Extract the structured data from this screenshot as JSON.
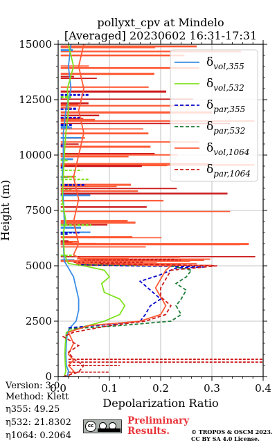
{
  "chart_data": {
    "type": "line",
    "title": [
      "pollyxt_cpv at Mindelo",
      "[Averaged] 20230602 16:31-17:31"
    ],
    "xlabel": "Depolarization Ratio",
    "ylabel": "Height (m)",
    "xlim": [
      0.0,
      0.4
    ],
    "ylim": [
      0,
      15000
    ],
    "x_ticks": [
      0.0,
      0.1,
      0.2,
      0.3,
      0.4
    ],
    "x_tick_labels": [
      "0.0",
      "0.1",
      "0.2",
      "0.3",
      "0.4"
    ],
    "y_ticks": [
      0,
      2500,
      5000,
      7500,
      10000,
      12500,
      15000
    ],
    "y_tick_labels": [
      "0",
      "2500",
      "5000",
      "7500",
      "10000",
      "12500",
      "15000"
    ],
    "grid": true,
    "legend_position": "top-right",
    "series": [
      {
        "name": "δ_vol,355",
        "color": "#3a8ee6",
        "style": "solid",
        "points": [
          [
            0.018,
            0
          ],
          [
            0.02,
            250
          ],
          [
            0.016,
            500
          ],
          [
            0.015,
            1000
          ],
          [
            0.016,
            1500
          ],
          [
            0.018,
            2000
          ],
          [
            0.025,
            2250
          ],
          [
            0.035,
            2500
          ],
          [
            0.04,
            3000
          ],
          [
            0.04,
            3500
          ],
          [
            0.035,
            4000
          ],
          [
            0.03,
            4500
          ],
          [
            0.02,
            4900
          ],
          [
            0.012,
            5200
          ],
          [
            0.01,
            6000
          ],
          [
            0.012,
            7000
          ],
          [
            0.01,
            8000
          ],
          [
            0.008,
            9000
          ],
          [
            0.01,
            10000
          ],
          [
            0.01,
            11000
          ],
          [
            0.015,
            12000
          ],
          [
            0.02,
            12500
          ],
          [
            0.025,
            13000
          ],
          [
            0.02,
            14000
          ],
          [
            0.025,
            15000
          ]
        ]
      },
      {
        "name": "δ_vol,532",
        "color": "#7fe21e",
        "style": "solid",
        "points": [
          [
            0.012,
            0
          ],
          [
            0.015,
            250
          ],
          [
            0.014,
            500
          ],
          [
            0.013,
            1000
          ],
          [
            0.014,
            1500
          ],
          [
            0.016,
            2000
          ],
          [
            0.05,
            2250
          ],
          [
            0.09,
            2500
          ],
          [
            0.12,
            2800
          ],
          [
            0.13,
            3200
          ],
          [
            0.12,
            3500
          ],
          [
            0.09,
            3800
          ],
          [
            0.085,
            4200
          ],
          [
            0.1,
            4500
          ],
          [
            0.09,
            4800
          ],
          [
            0.05,
            5000
          ],
          [
            0.02,
            5100
          ],
          [
            0.012,
            5500
          ],
          [
            0.01,
            6500
          ],
          [
            0.015,
            7000
          ],
          [
            0.008,
            8000
          ],
          [
            0.01,
            9000
          ],
          [
            0.012,
            10000
          ],
          [
            0.015,
            11000
          ],
          [
            0.02,
            12000
          ],
          [
            0.018,
            13000
          ],
          [
            0.03,
            14000
          ],
          [
            0.02,
            15000
          ]
        ]
      },
      {
        "name": "δ_par,355",
        "color": "#0000cc",
        "style": "dashed",
        "points": [
          [
            0.02,
            2200
          ],
          [
            0.1,
            2350
          ],
          [
            0.16,
            2500
          ],
          [
            0.17,
            2800
          ],
          [
            0.18,
            3200
          ],
          [
            0.2,
            3500
          ],
          [
            0.18,
            3900
          ],
          [
            0.16,
            4300
          ],
          [
            0.2,
            4600
          ],
          [
            0.23,
            4900
          ],
          [
            0.29,
            4950
          ],
          [
            0.14,
            5000
          ],
          [
            0.04,
            5050
          ]
        ]
      },
      {
        "name": "δ_par,532",
        "color": "#1b7d36",
        "style": "dashed",
        "points": [
          [
            0.02,
            2150
          ],
          [
            0.12,
            2300
          ],
          [
            0.22,
            2500
          ],
          [
            0.24,
            2800
          ],
          [
            0.23,
            3200
          ],
          [
            0.24,
            3500
          ],
          [
            0.25,
            3900
          ],
          [
            0.23,
            4200
          ],
          [
            0.25,
            4500
          ],
          [
            0.26,
            4800
          ],
          [
            0.22,
            5000
          ],
          [
            0.05,
            5050
          ]
        ]
      },
      {
        "name": "δ_vol,1064",
        "color": "#ff5a36",
        "style": "solid",
        "points": [
          [
            0.02,
            0
          ],
          [
            0.03,
            250
          ],
          [
            0.02,
            500
          ],
          [
            0.03,
            750
          ],
          [
            0.02,
            1000
          ],
          [
            0.03,
            1500
          ],
          [
            0.02,
            2000
          ],
          [
            0.06,
            2300
          ],
          [
            0.16,
            2500
          ],
          [
            0.2,
            2800
          ],
          [
            0.21,
            3200
          ],
          [
            0.2,
            3600
          ],
          [
            0.19,
            4000
          ],
          [
            0.2,
            4400
          ],
          [
            0.21,
            4800
          ],
          [
            0.22,
            5000
          ],
          [
            0.06,
            5100
          ],
          [
            0.03,
            5500
          ],
          [
            0.04,
            6000
          ],
          [
            0.03,
            7000
          ],
          [
            0.04,
            8000
          ],
          [
            0.03,
            9000
          ],
          [
            0.04,
            10000
          ],
          [
            0.05,
            11000
          ],
          [
            0.04,
            12000
          ],
          [
            0.05,
            13000
          ],
          [
            0.04,
            14000
          ],
          [
            0.05,
            15000
          ]
        ]
      },
      {
        "name": "δ_par,1064",
        "color": "#cc1a1a",
        "style": "dashed",
        "points": [
          [
            0.01,
            0
          ],
          [
            0.04,
            200
          ],
          [
            0.05,
            500
          ],
          [
            0.03,
            800
          ],
          [
            0.02,
            1100
          ],
          [
            0.04,
            1400
          ],
          [
            0.01,
            1800
          ],
          [
            0.03,
            2000
          ],
          [
            0.1,
            2300
          ],
          [
            0.17,
            2500
          ],
          [
            0.21,
            2800
          ],
          [
            0.22,
            3200
          ],
          [
            0.2,
            3600
          ],
          [
            0.2,
            4000
          ],
          [
            0.21,
            4400
          ],
          [
            0.22,
            4800
          ],
          [
            0.31,
            5000
          ],
          [
            0.08,
            5100
          ]
        ]
      }
    ]
  },
  "footer": {
    "version": "Version: 3.0",
    "method": "Method: Klett",
    "eta355": "η355:  49.25",
    "eta532": "η532: 21.8302",
    "eta1064": "η1064: 0.2064",
    "preliminary": "Preliminary",
    "results": "Results.",
    "copyright1": "© TROPOS & OSCM 2023.",
    "copyright2": "CC BY SA 4.0 License."
  },
  "license_badge": {
    "cc": "cc",
    "by": "BY",
    "sa": "SA"
  }
}
